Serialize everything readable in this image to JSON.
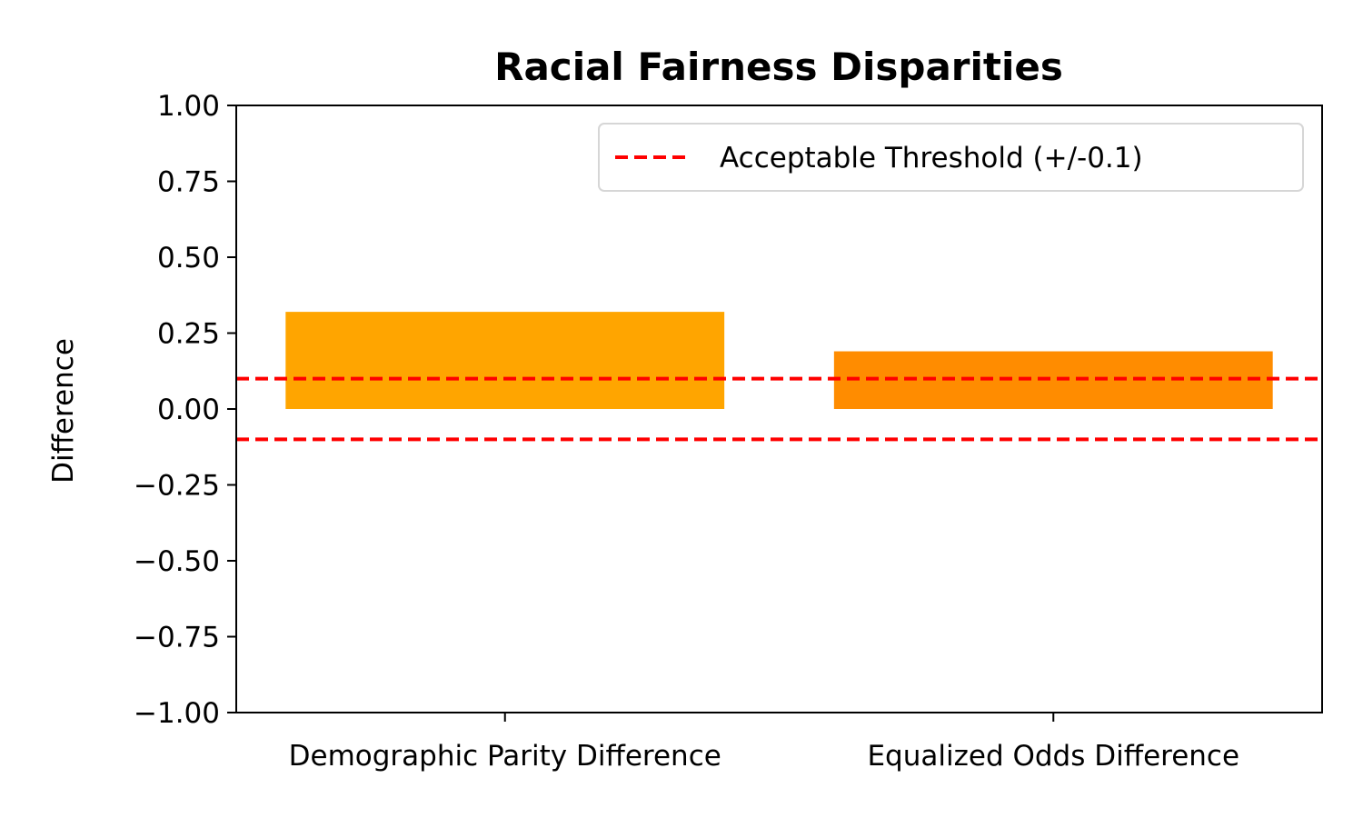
{
  "chart_data": {
    "type": "bar",
    "title": "Racial Fairness Disparities",
    "xlabel": "",
    "ylabel": "Difference",
    "categories": [
      "Demographic Parity Difference",
      "Equalized Odds Difference"
    ],
    "values": [
      0.32,
      0.19
    ],
    "bar_colors": [
      "#FFA500",
      "#FF8C00"
    ],
    "ylim": [
      -1.0,
      1.0
    ],
    "yticks": [
      "1.00",
      "0.75",
      "0.50",
      "0.25",
      "0.00",
      "−0.25",
      "−0.50",
      "−0.75",
      "−1.00"
    ],
    "ytick_values": [
      1.0,
      0.75,
      0.5,
      0.25,
      0.0,
      -0.25,
      -0.5,
      -0.75,
      -1.0
    ],
    "thresholds": [
      0.1,
      -0.1
    ],
    "threshold_color": "#FF0000",
    "legend": {
      "label": "Acceptable Threshold (+/-0.1)",
      "placement": "top-right"
    },
    "grid": false
  }
}
